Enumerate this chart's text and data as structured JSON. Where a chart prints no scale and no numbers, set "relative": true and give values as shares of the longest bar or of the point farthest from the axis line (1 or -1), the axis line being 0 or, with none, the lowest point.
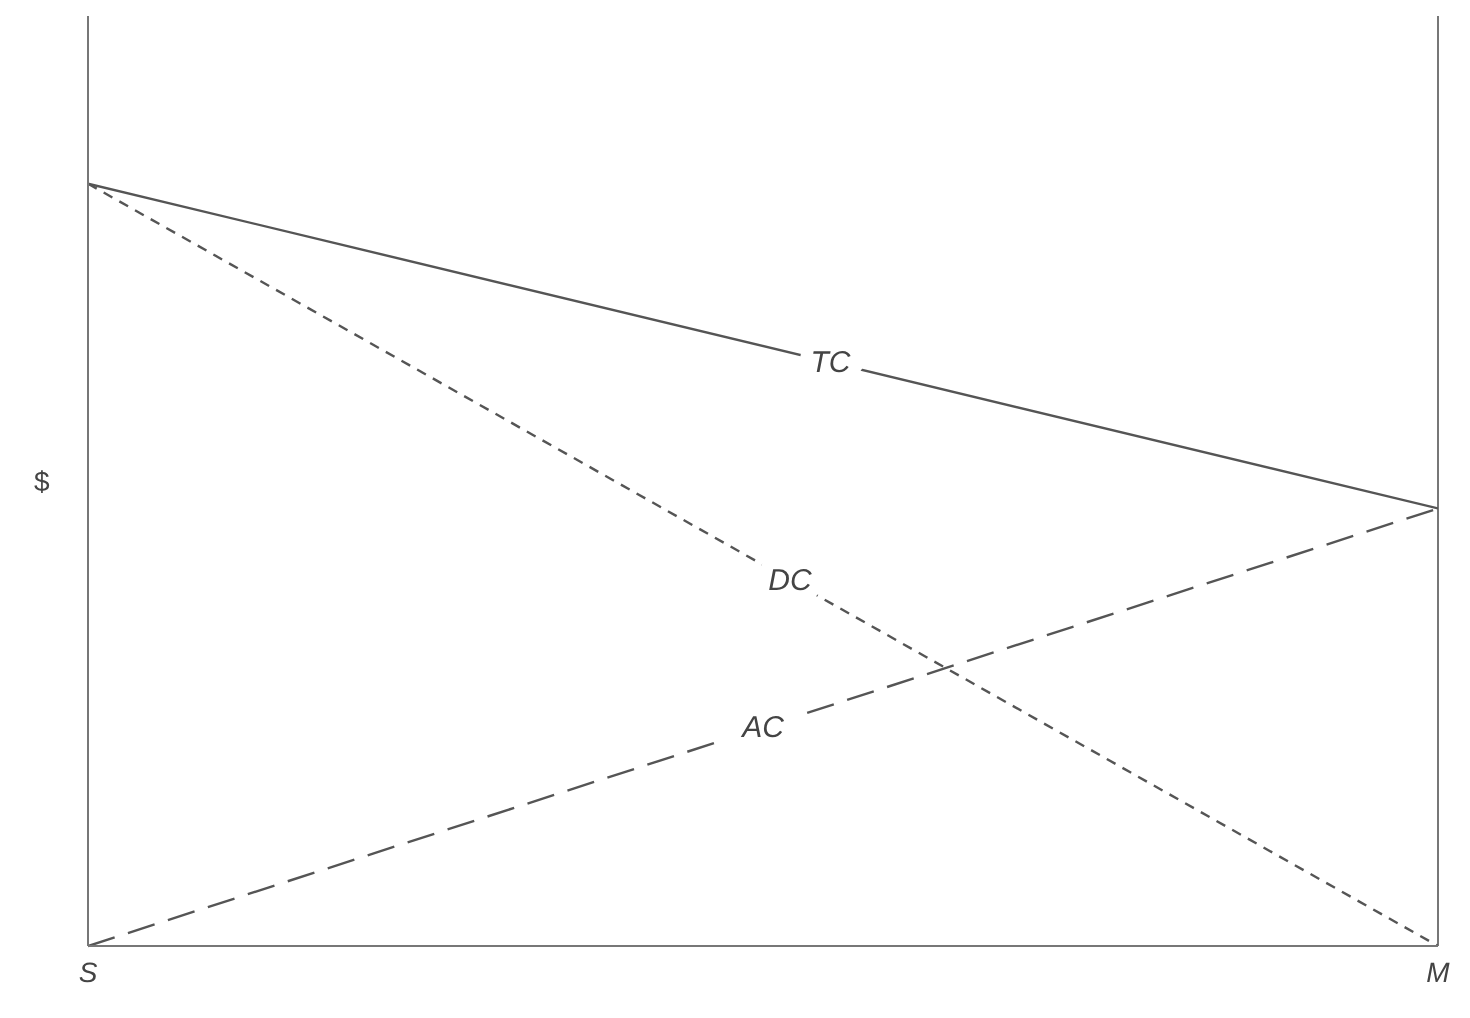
{
  "chart_data": {
    "type": "line",
    "relative": true,
    "ylabel": "$",
    "categories": [
      "S",
      "M"
    ],
    "legend": false,
    "grid": "x",
    "marker": "none",
    "series": [
      {
        "name": "TC",
        "color": "#555555",
        "line_style": "solid",
        "values": [
          1,
          0.574
        ]
      },
      {
        "name": "DC",
        "color": "#555555",
        "line_style": "dotted",
        "values": [
          1,
          0
        ]
      },
      {
        "name": "AC",
        "color": "#555555",
        "line_style": "dashed",
        "values": [
          0,
          0.574
        ]
      }
    ]
  }
}
